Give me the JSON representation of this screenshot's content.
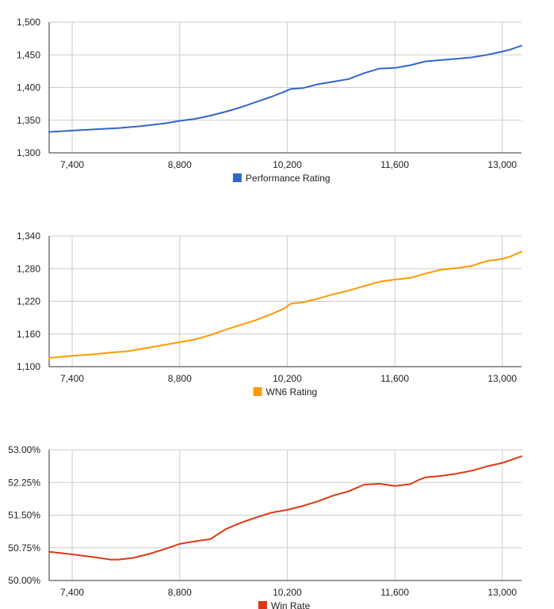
{
  "chart_data": [
    {
      "type": "line",
      "title": "",
      "xlabel": "",
      "ylabel": "",
      "xlim": [
        7100,
        13250
      ],
      "ylim": [
        1300,
        1500
      ],
      "x_ticks": [
        7400,
        8800,
        10200,
        11600,
        13000
      ],
      "x_tick_labels": [
        "7,400",
        "8,800",
        "10,200",
        "11,600",
        "13,000"
      ],
      "y_ticks": [
        1300,
        1350,
        1400,
        1450,
        1500
      ],
      "y_tick_labels": [
        "1,300",
        "1,350",
        "1,400",
        "1,450",
        "1,500"
      ],
      "grid": true,
      "legend_position": "bottom",
      "color": "#3366cc",
      "series": [
        {
          "name": "Performance Rating",
          "x": [
            7100,
            7400,
            7700,
            8000,
            8300,
            8600,
            8800,
            9000,
            9200,
            9400,
            9600,
            9800,
            10000,
            10150,
            10250,
            10400,
            10600,
            10800,
            11000,
            11200,
            11400,
            11600,
            11800,
            12000,
            12200,
            12400,
            12600,
            12800,
            13000,
            13100,
            13250
          ],
          "y": [
            1332,
            1334,
            1336,
            1338,
            1341,
            1345,
            1349,
            1352,
            1357,
            1363,
            1370,
            1378,
            1386,
            1393,
            1398,
            1399,
            1405,
            1409,
            1413,
            1422,
            1429,
            1430,
            1434,
            1440,
            1442,
            1444,
            1446,
            1450,
            1455,
            1458,
            1464
          ]
        }
      ]
    },
    {
      "type": "line",
      "title": "",
      "xlabel": "",
      "ylabel": "",
      "xlim": [
        7100,
        13250
      ],
      "ylim": [
        1100,
        1340
      ],
      "x_ticks": [
        7400,
        8800,
        10200,
        11600,
        13000
      ],
      "x_tick_labels": [
        "7,400",
        "8,800",
        "10,200",
        "11,600",
        "13,000"
      ],
      "y_ticks": [
        1100,
        1160,
        1220,
        1280,
        1340
      ],
      "y_tick_labels": [
        "1,100",
        "1,160",
        "1,220",
        "1,280",
        "1,340"
      ],
      "grid": true,
      "legend_position": "bottom",
      "color": "#ff9900",
      "series": [
        {
          "name": "WN6 Rating",
          "x": [
            7100,
            7400,
            7700,
            7900,
            8100,
            8400,
            8600,
            8800,
            9000,
            9200,
            9400,
            9600,
            9800,
            10000,
            10150,
            10250,
            10400,
            10600,
            10800,
            11000,
            11200,
            11400,
            11600,
            11800,
            12000,
            12200,
            12400,
            12600,
            12800,
            13000,
            13100,
            13250
          ],
          "y": [
            1116,
            1120,
            1123,
            1126,
            1128,
            1135,
            1140,
            1145,
            1150,
            1158,
            1168,
            1177,
            1186,
            1197,
            1206,
            1216,
            1218,
            1225,
            1233,
            1240,
            1248,
            1256,
            1260,
            1263,
            1271,
            1278,
            1281,
            1285,
            1294,
            1298,
            1302,
            1311
          ]
        }
      ]
    },
    {
      "type": "line",
      "title": "",
      "xlabel": "",
      "ylabel": "",
      "xlim": [
        7100,
        13250
      ],
      "ylim": [
        50.0,
        53.0
      ],
      "x_ticks": [
        7400,
        8800,
        10200,
        11600,
        13000
      ],
      "x_tick_labels": [
        "7,400",
        "8,800",
        "10,200",
        "11,600",
        "13,000"
      ],
      "y_ticks": [
        50.0,
        50.75,
        51.5,
        52.25,
        53.0
      ],
      "y_tick_labels": [
        "50.00%",
        "50.75%",
        "51.50%",
        "52.25%",
        "53.00%"
      ],
      "grid": true,
      "legend_position": "bottom",
      "color": "#dc3912",
      "series": [
        {
          "name": "Win Rate",
          "x": [
            7100,
            7400,
            7700,
            7900,
            8000,
            8200,
            8400,
            8600,
            8800,
            9000,
            9200,
            9400,
            9600,
            9800,
            10000,
            10100,
            10200,
            10400,
            10600,
            10800,
            11000,
            11200,
            11400,
            11600,
            11800,
            11900,
            12000,
            12200,
            12400,
            12600,
            12800,
            13000,
            13100,
            13250
          ],
          "y": [
            50.66,
            50.6,
            50.53,
            50.48,
            50.48,
            50.52,
            50.61,
            50.72,
            50.84,
            50.9,
            50.95,
            51.18,
            51.33,
            51.45,
            51.56,
            51.59,
            51.62,
            51.71,
            51.82,
            51.95,
            52.05,
            52.2,
            52.22,
            52.17,
            52.21,
            52.3,
            52.37,
            52.4,
            52.45,
            52.52,
            52.62,
            52.7,
            52.76,
            52.85
          ]
        }
      ]
    }
  ]
}
